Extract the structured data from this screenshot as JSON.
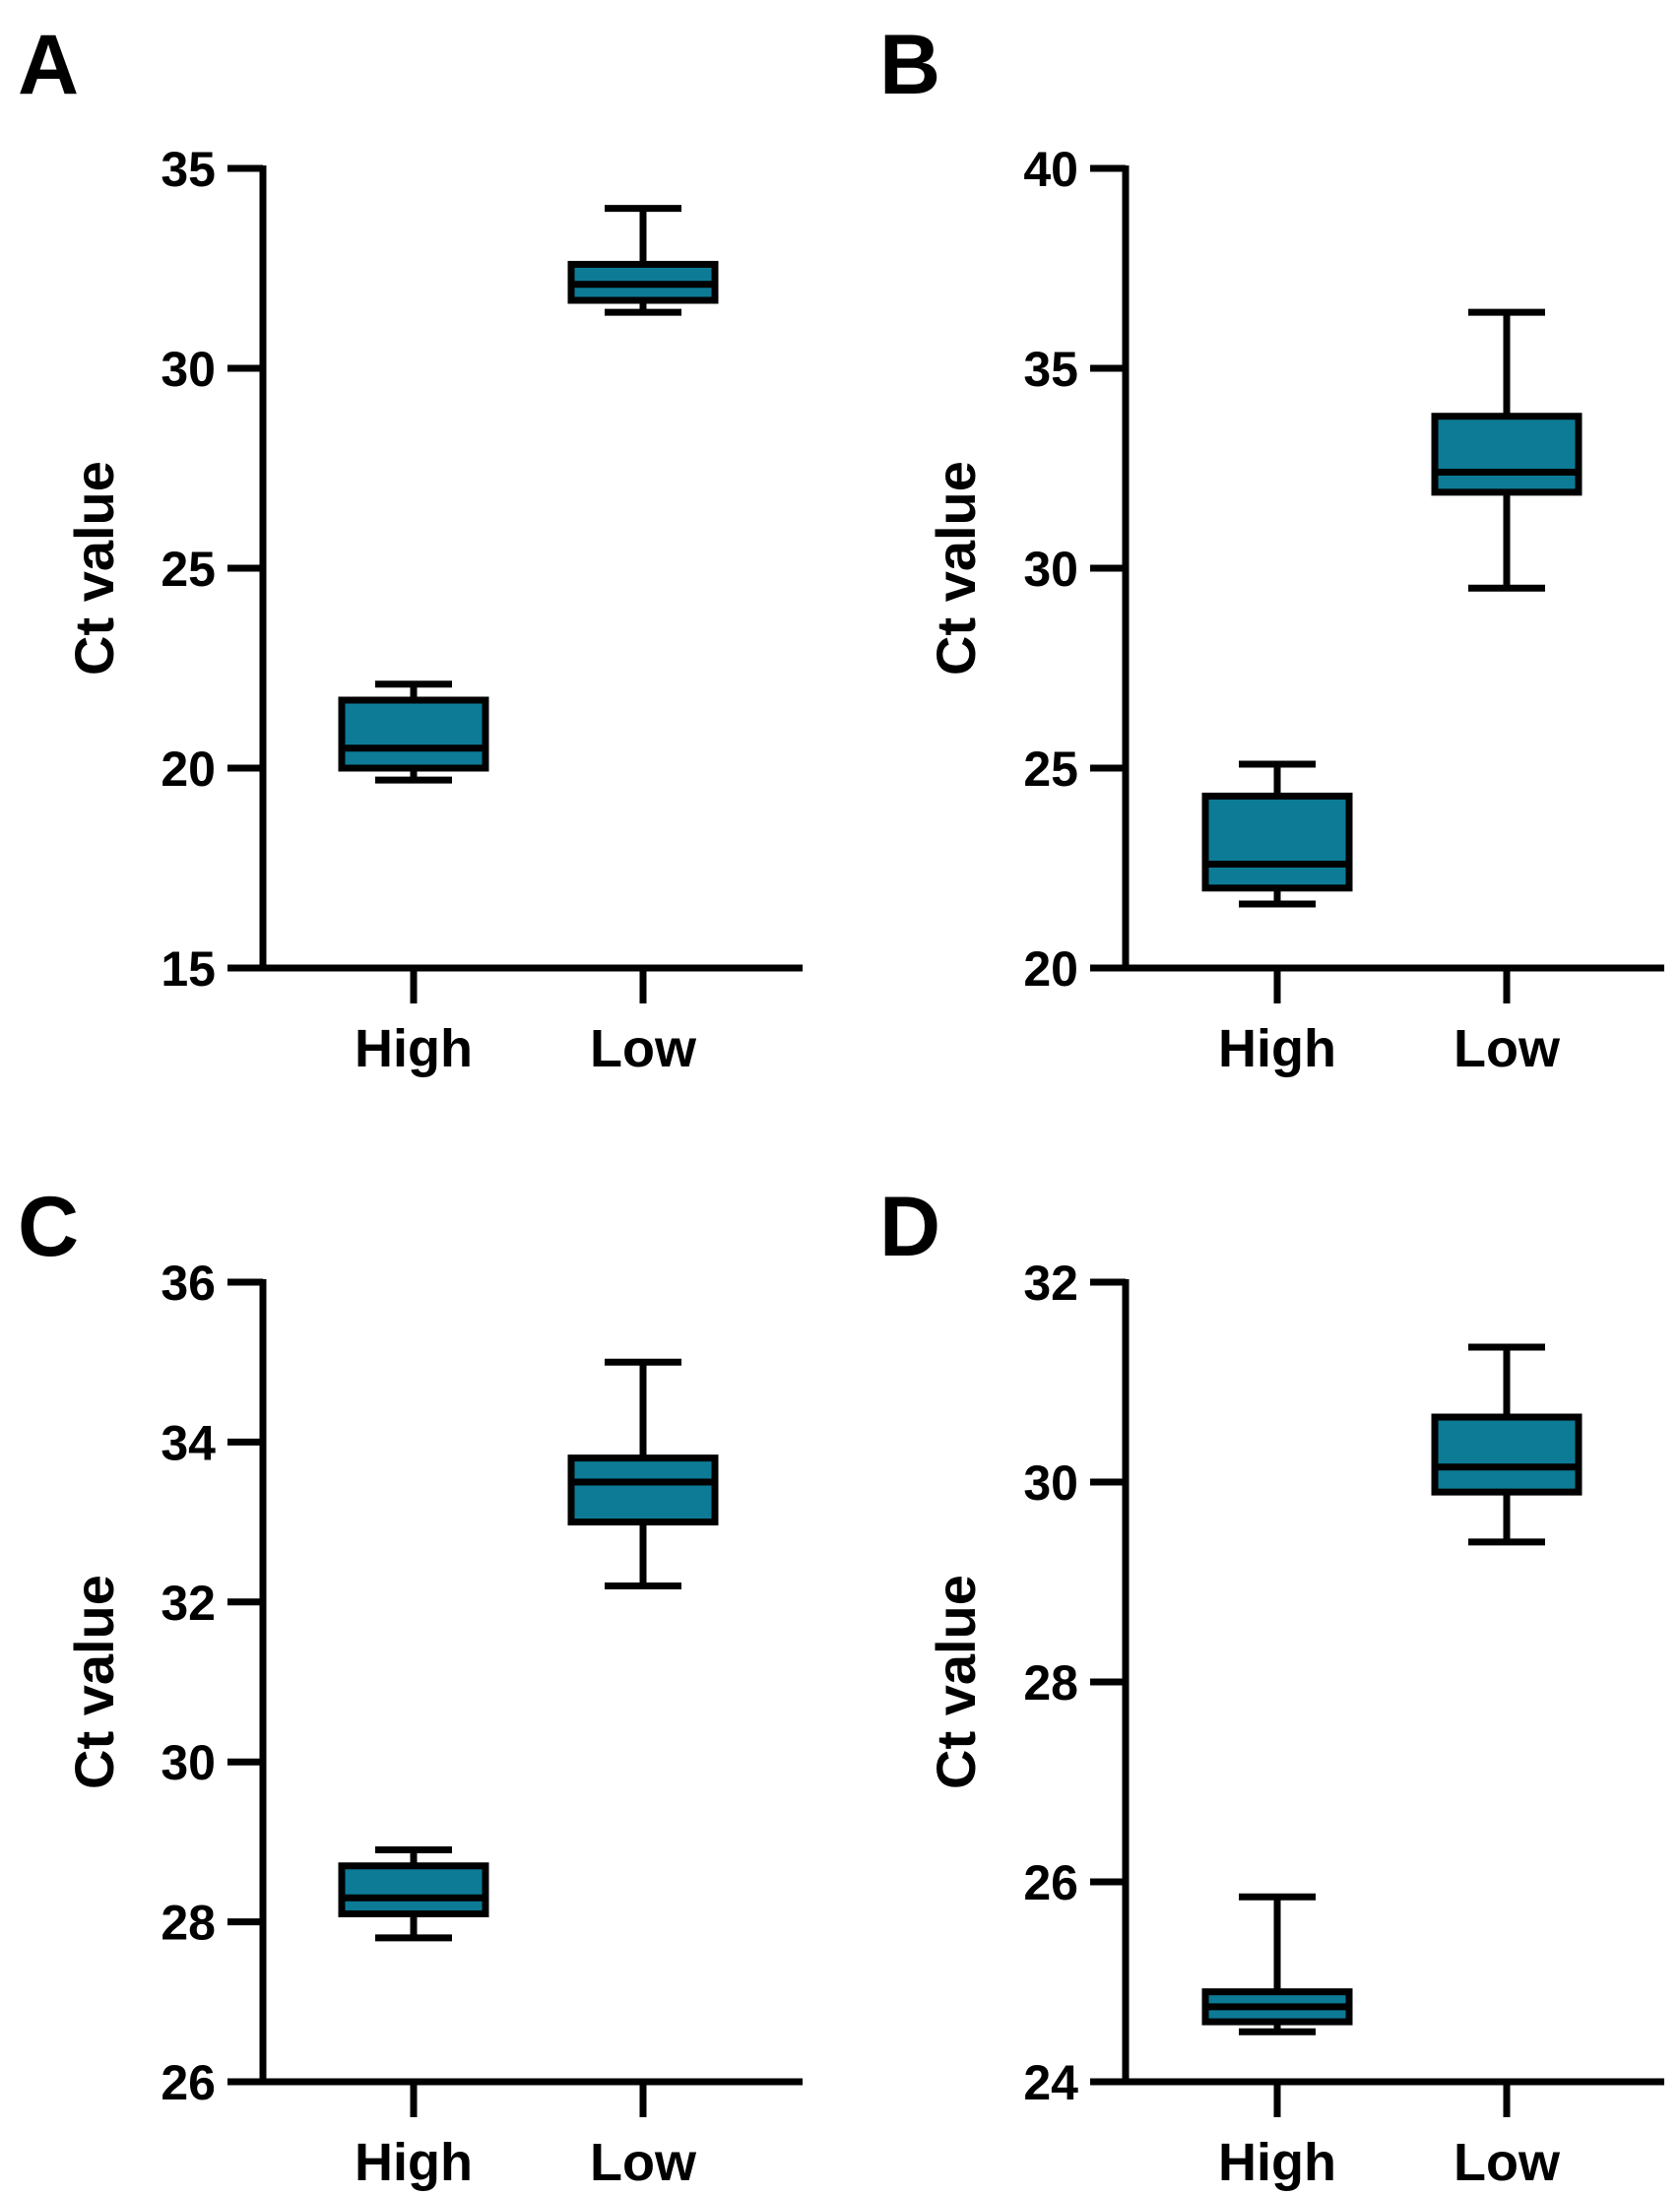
{
  "figure": {
    "box_fill": "#0d7b96",
    "stroke_color": "#000000"
  },
  "chart_data": [
    {
      "type": "box",
      "panel": "A",
      "ylabel": "Ct value",
      "ylim": [
        15,
        35
      ],
      "yticks": [
        15,
        20,
        25,
        30,
        35
      ],
      "categories": [
        "High",
        "Low"
      ],
      "boxes": [
        {
          "category": "High",
          "min": 19.7,
          "q1": 20.0,
          "median": 20.5,
          "q3": 21.7,
          "max": 22.1
        },
        {
          "category": "Low",
          "min": 31.4,
          "q1": 31.7,
          "median": 32.1,
          "q3": 32.6,
          "max": 34.0
        }
      ]
    },
    {
      "type": "box",
      "panel": "B",
      "ylabel": "Ct value",
      "ylim": [
        20,
        40
      ],
      "yticks": [
        20,
        25,
        30,
        35,
        40
      ],
      "categories": [
        "High",
        "Low"
      ],
      "boxes": [
        {
          "category": "High",
          "min": 21.6,
          "q1": 22.0,
          "median": 22.6,
          "q3": 24.3,
          "max": 25.1
        },
        {
          "category": "Low",
          "min": 29.5,
          "q1": 31.9,
          "median": 32.4,
          "q3": 33.8,
          "max": 36.4
        }
      ]
    },
    {
      "type": "box",
      "panel": "C",
      "ylabel": "Ct value",
      "ylim": [
        26,
        36
      ],
      "yticks": [
        26,
        28,
        30,
        32,
        34,
        36
      ],
      "categories": [
        "High",
        "Low"
      ],
      "boxes": [
        {
          "category": "High",
          "min": 27.8,
          "q1": 28.1,
          "median": 28.3,
          "q3": 28.7,
          "max": 28.9
        },
        {
          "category": "Low",
          "min": 32.2,
          "q1": 33.0,
          "median": 33.5,
          "q3": 33.8,
          "max": 35.0
        }
      ]
    },
    {
      "type": "box",
      "panel": "D",
      "ylabel": "Ct value",
      "ylim": [
        24,
        32
      ],
      "yticks": [
        24,
        26,
        28,
        30,
        32
      ],
      "categories": [
        "High",
        "Low"
      ],
      "boxes": [
        {
          "category": "High",
          "min": 24.5,
          "q1": 24.6,
          "median": 24.75,
          "q3": 24.9,
          "max": 25.85
        },
        {
          "category": "Low",
          "min": 29.4,
          "q1": 29.9,
          "median": 30.15,
          "q3": 30.65,
          "max": 31.35
        }
      ]
    }
  ]
}
